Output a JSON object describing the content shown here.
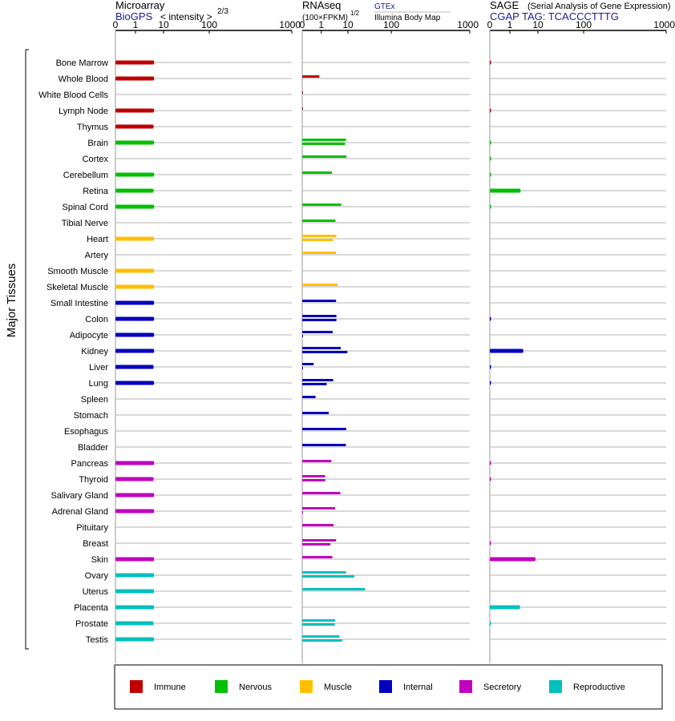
{
  "chart_data": {
    "type": "bar",
    "side_label": "Major Tissues",
    "panels": [
      {
        "key": "microarray",
        "title": "Microarray",
        "source": "BioGPS",
        "scale_label": "< intensity >",
        "scale_exp": "2/3",
        "ticks": [
          "0",
          "1",
          "10",
          "100",
          "1000"
        ],
        "xlim": [
          0,
          1000
        ]
      },
      {
        "key": "rnaseq",
        "title": "RNAseq",
        "scale_label": "(100×FPKM)",
        "scale_exp": "1/2",
        "source": "GTEx",
        "source2": "Illumina Body Map",
        "ticks": [
          "0",
          "1",
          "10",
          "100",
          "1000"
        ],
        "xlim": [
          0,
          1000
        ]
      },
      {
        "key": "sage",
        "title": "SAGE",
        "title_note": "(Serial Analysis of Gene Expression)",
        "source": "CGAP TAG: TCACCCTTTG",
        "ticks": [
          "0",
          "1",
          "10",
          "100",
          "1000"
        ],
        "xlim": [
          0,
          1000
        ]
      }
    ],
    "legend": [
      {
        "name": "Immune",
        "color": "#c00000"
      },
      {
        "name": "Nervous",
        "color": "#00c000"
      },
      {
        "name": "Muscle",
        "color": "#ffc000"
      },
      {
        "name": "Internal",
        "color": "#0000c0"
      },
      {
        "name": "Secretory",
        "color": "#c000c0"
      },
      {
        "name": "Reproductive",
        "color": "#00c0c0"
      }
    ],
    "tissues": [
      {
        "name": "Bone Marrow",
        "system": "Immune",
        "microarray": 4.6,
        "rnaseq": [],
        "sage": 0.03
      },
      {
        "name": "Whole Blood",
        "system": "Immune",
        "microarray": 4.6,
        "rnaseq": [
          0.9
        ],
        "sage": 0
      },
      {
        "name": "White Blood Cells",
        "system": "Immune",
        "microarray": null,
        "rnaseq": [
          0.03
        ],
        "sage": 0
      },
      {
        "name": "Lymph Node",
        "system": "Immune",
        "microarray": 4.6,
        "rnaseq": [
          0.02
        ],
        "sage": 0.03
      },
      {
        "name": "Thymus",
        "system": "Immune",
        "microarray": 4.4,
        "rnaseq": [],
        "sage": 0
      },
      {
        "name": "Brain",
        "system": "Nervous",
        "microarray": 4.6,
        "rnaseq": [
          8.5,
          7.8
        ],
        "sage": 0.03
      },
      {
        "name": "Cortex",
        "system": "Nervous",
        "microarray": null,
        "rnaseq": [
          8.8
        ],
        "sage": 0.02
      },
      {
        "name": "Cerebellum",
        "system": "Nervous",
        "microarray": 4.6,
        "rnaseq": [
          2.5
        ],
        "sage": 0.02
      },
      {
        "name": "Retina",
        "system": "Nervous",
        "microarray": 4.4,
        "rnaseq": [],
        "sage": 2.4
      },
      {
        "name": "Spinal Cord",
        "system": "Nervous",
        "microarray": 4.6,
        "rnaseq": [
          5.6
        ],
        "sage": 0.02
      },
      {
        "name": "Tibial Nerve",
        "system": "Nervous",
        "microarray": null,
        "rnaseq": [
          3.4
        ],
        "sage": 0
      },
      {
        "name": "Heart",
        "system": "Muscle",
        "microarray": 4.6,
        "rnaseq": [
          3.7,
          2.7
        ],
        "sage": 0
      },
      {
        "name": "Artery",
        "system": "Muscle",
        "microarray": null,
        "rnaseq": [
          3.6
        ],
        "sage": 0
      },
      {
        "name": "Smooth Muscle",
        "system": "Muscle",
        "microarray": 4.6,
        "rnaseq": [],
        "sage": 0
      },
      {
        "name": "Skeletal Muscle",
        "system": "Muscle",
        "microarray": 4.6,
        "rnaseq": [
          4.1
        ],
        "sage": 0
      },
      {
        "name": "Small Intestine",
        "system": "Internal",
        "microarray": 4.6,
        "rnaseq": [
          3.6
        ],
        "sage": 0
      },
      {
        "name": "Colon",
        "system": "Internal",
        "microarray": 4.6,
        "rnaseq": [
          3.7,
          3.7
        ],
        "sage": 0.03
      },
      {
        "name": "Adipocyte",
        "system": "Internal",
        "microarray": 4.6,
        "rnaseq": [
          2.7,
          0.03
        ],
        "sage": 0
      },
      {
        "name": "Kidney",
        "system": "Internal",
        "microarray": 4.6,
        "rnaseq": [
          5.4,
          9.5
        ],
        "sage": 3.0
      },
      {
        "name": "Liver",
        "system": "Internal",
        "microarray": 4.4,
        "rnaseq": [
          0.6,
          0.02
        ],
        "sage": 0.03
      },
      {
        "name": "Lung",
        "system": "Internal",
        "microarray": 4.6,
        "rnaseq": [
          2.8,
          1.6
        ],
        "sage": 0.03
      },
      {
        "name": "Spleen",
        "system": "Internal",
        "microarray": null,
        "rnaseq": [
          0.7
        ],
        "sage": 0
      },
      {
        "name": "Stomach",
        "system": "Internal",
        "microarray": null,
        "rnaseq": [
          1.9
        ],
        "sage": 0
      },
      {
        "name": "Esophagus",
        "system": "Internal",
        "microarray": null,
        "rnaseq": [
          8.6
        ],
        "sage": 0
      },
      {
        "name": "Bladder",
        "system": "Internal",
        "microarray": null,
        "rnaseq": [
          8.4
        ],
        "sage": 0
      },
      {
        "name": "Pancreas",
        "system": "Secretory",
        "microarray": 4.6,
        "rnaseq": [
          2.4
        ],
        "sage": 0.03
      },
      {
        "name": "Thyroid",
        "system": "Secretory",
        "microarray": 4.4,
        "rnaseq": [
          1.4,
          1.4
        ],
        "sage": 0.03
      },
      {
        "name": "Salivary Gland",
        "system": "Secretory",
        "microarray": 4.6,
        "rnaseq": [
          5.2
        ],
        "sage": 0
      },
      {
        "name": "Adrenal Gland",
        "system": "Secretory",
        "microarray": 4.6,
        "rnaseq": [
          3.3,
          0.02
        ],
        "sage": 0
      },
      {
        "name": "Pituitary",
        "system": "Secretory",
        "microarray": null,
        "rnaseq": [
          2.9
        ],
        "sage": 0
      },
      {
        "name": "Breast",
        "system": "Secretory",
        "microarray": null,
        "rnaseq": [
          3.6,
          2.2
        ],
        "sage": 0.03
      },
      {
        "name": "Skin",
        "system": "Secretory",
        "microarray": 4.6,
        "rnaseq": [
          2.6
        ],
        "sage": 8.2
      },
      {
        "name": "Ovary",
        "system": "Reproductive",
        "microarray": 4.6,
        "rnaseq": [
          8.5,
          14.0
        ],
        "sage": 0
      },
      {
        "name": "Uterus",
        "system": "Reproductive",
        "microarray": 4.6,
        "rnaseq": [
          25.0
        ],
        "sage": 0
      },
      {
        "name": "Placenta",
        "system": "Reproductive",
        "microarray": 4.6,
        "rnaseq": [],
        "sage": 2.3
      },
      {
        "name": "Prostate",
        "system": "Reproductive",
        "microarray": 4.4,
        "rnaseq": [
          3.3,
          3.2
        ],
        "sage": 0.02
      },
      {
        "name": "Testis",
        "system": "Reproductive",
        "microarray": 4.6,
        "rnaseq": [
          4.8,
          6.1
        ],
        "sage": 0
      }
    ]
  }
}
